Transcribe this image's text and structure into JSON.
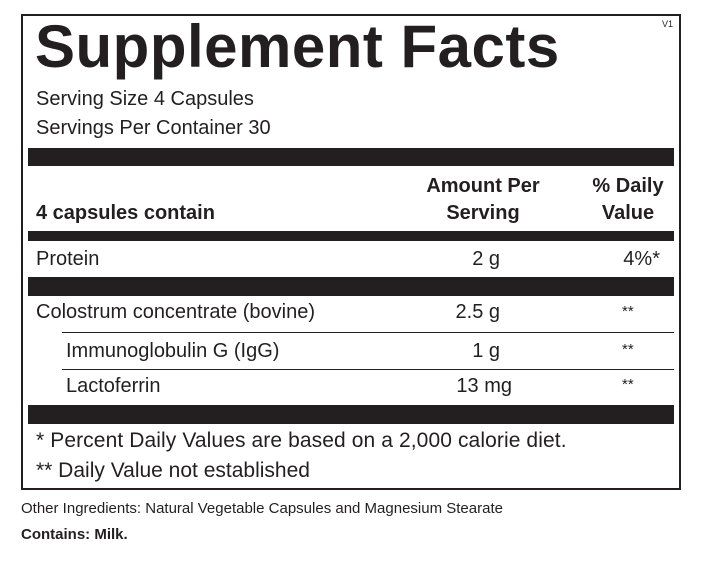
{
  "label": {
    "title": "Supplement Facts",
    "version": "V1",
    "serving_size": "Serving Size 4 Capsules",
    "servings_per_container": "Servings Per Container  30",
    "header": {
      "contents": "4 capsules contain",
      "amount_line1": "Amount Per",
      "amount_line2": "Serving",
      "dv_line1": "% Daily",
      "dv_line2": "Value"
    },
    "rows": [
      {
        "name": "Protein",
        "amount": "2 g",
        "dv": "4%*"
      },
      {
        "name": "Colostrum concentrate (bovine)",
        "amount": "2.5 g",
        "dv": "**"
      },
      {
        "name": "Immunoglobulin G (IgG)",
        "amount": "1 g",
        "dv": "**"
      },
      {
        "name": "Lactoferrin",
        "amount": "13 mg",
        "dv": "**"
      }
    ],
    "footnotes": [
      "* Percent Daily Values are based on a 2,000 calorie diet.",
      "** Daily Value not established"
    ]
  },
  "other_ingredients": "Other Ingredients: Natural Vegetable Capsules and Magnesium Stearate",
  "contains": "Contains: Milk.",
  "colors": {
    "ink": "#231f20",
    "background": "#ffffff"
  }
}
